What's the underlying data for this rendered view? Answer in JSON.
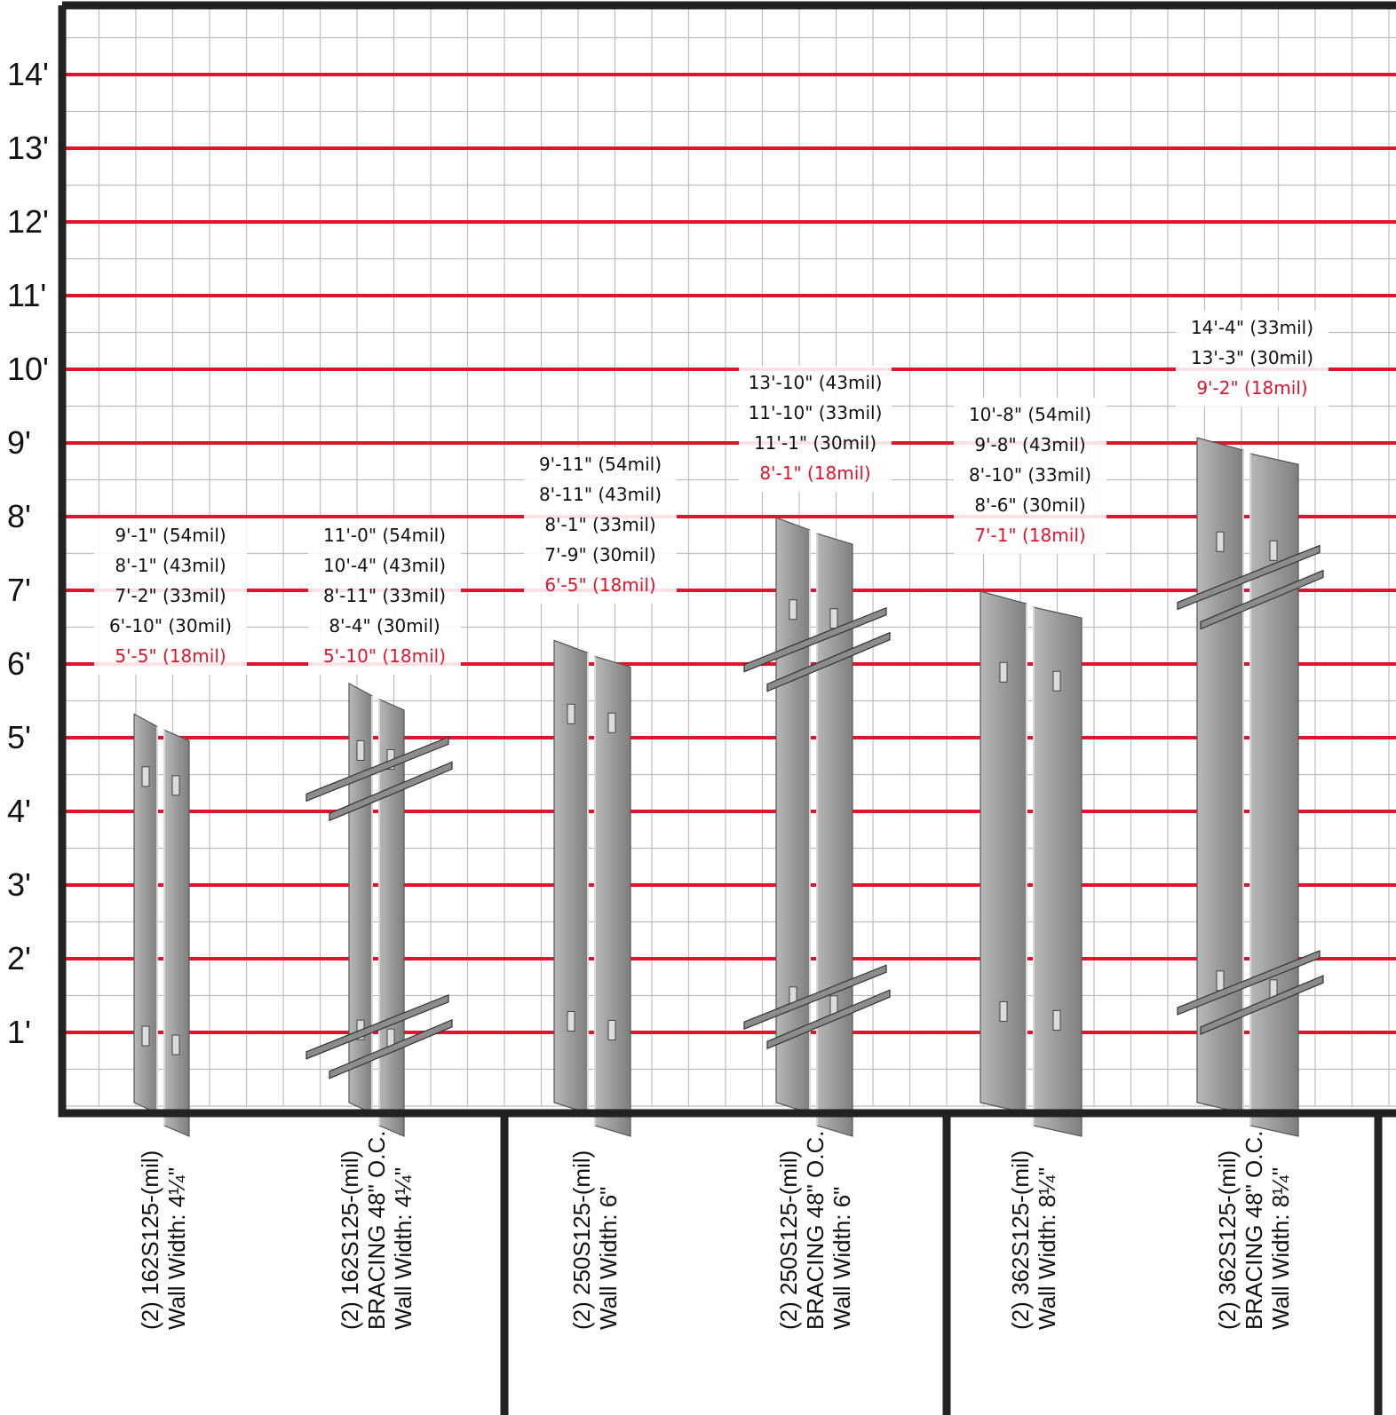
{
  "chart_data": {
    "type": "bar",
    "ylim": [
      0,
      15
    ],
    "y_ticks": [
      "1'",
      "2'",
      "3'",
      "4'",
      "5'",
      "6'",
      "7'",
      "8'",
      "9'",
      "10'",
      "11'",
      "12'",
      "13'",
      "14'"
    ],
    "y_tick_values": [
      1,
      2,
      3,
      4,
      5,
      6,
      7,
      8,
      9,
      10,
      11,
      12,
      13,
      14
    ],
    "grid": true,
    "colors": {
      "major_line": "#e0142c",
      "minor_grid": "#bdbdbd",
      "frame": "#222222",
      "stud": "#9a9a9a",
      "highlight_text": "#e0142c"
    },
    "categories": [
      {
        "label_lines": [
          "(2) 162S125-(mil)",
          "Wall Width: 4¼\""
        ],
        "bracing": false,
        "values": [
          {
            "label": "9'-1\" (54mil)",
            "mil": 54,
            "feet": 9.083
          },
          {
            "label": "8'-1\" (43mil)",
            "mil": 43,
            "feet": 8.083
          },
          {
            "label": "7'-2\" (33mil)",
            "mil": 33,
            "feet": 7.167
          },
          {
            "label": "6'-10\" (30mil)",
            "mil": 30,
            "feet": 6.833
          },
          {
            "label": "5'-5\" (18mil)",
            "mil": 18,
            "feet": 5.417,
            "highlight": true
          }
        ]
      },
      {
        "label_lines": [
          "(2) 162S125-(mil)",
          "BRACING 48\" O.C.",
          "Wall Width: 4¼\""
        ],
        "bracing": true,
        "values": [
          {
            "label": "11'-0\" (54mil)",
            "mil": 54,
            "feet": 11.0
          },
          {
            "label": "10'-4\" (43mil)",
            "mil": 43,
            "feet": 10.333
          },
          {
            "label": "8'-11\" (33mil)",
            "mil": 33,
            "feet": 8.917
          },
          {
            "label": "8'-4\" (30mil)",
            "mil": 30,
            "feet": 8.333
          },
          {
            "label": "5'-10\" (18mil)",
            "mil": 18,
            "feet": 5.833,
            "highlight": true
          }
        ]
      },
      {
        "label_lines": [
          "(2) 250S125-(mil)",
          "Wall Width: 6\""
        ],
        "bracing": false,
        "values": [
          {
            "label": "9'-11\" (54mil)",
            "mil": 54,
            "feet": 9.917
          },
          {
            "label": "8'-11\" (43mil)",
            "mil": 43,
            "feet": 8.917
          },
          {
            "label": "8'-1\" (33mil)",
            "mil": 33,
            "feet": 8.083
          },
          {
            "label": "7'-9\" (30mil)",
            "mil": 30,
            "feet": 7.75
          },
          {
            "label": "6'-5\" (18mil)",
            "mil": 18,
            "feet": 6.417,
            "highlight": true
          }
        ]
      },
      {
        "label_lines": [
          "(2) 250S125-(mil)",
          "BRACING 48\" O.C.",
          "Wall Width: 6\""
        ],
        "bracing": true,
        "values": [
          {
            "label": "13'-10\" (43mil)",
            "mil": 43,
            "feet": 13.833
          },
          {
            "label": "11'-10\" (33mil)",
            "mil": 33,
            "feet": 11.833
          },
          {
            "label": "11'-1\" (30mil)",
            "mil": 30,
            "feet": 11.083
          },
          {
            "label": "8'-1\" (18mil)",
            "mil": 18,
            "feet": 8.083,
            "highlight": true
          }
        ]
      },
      {
        "label_lines": [
          "(2) 362S125-(mil)",
          "Wall Width: 8¼\""
        ],
        "bracing": false,
        "values": [
          {
            "label": "10'-8\" (54mil)",
            "mil": 54,
            "feet": 10.667
          },
          {
            "label": "9'-8\" (43mil)",
            "mil": 43,
            "feet": 9.667
          },
          {
            "label": "8'-10\" (33mil)",
            "mil": 33,
            "feet": 8.833
          },
          {
            "label": "8'-6\" (30mil)",
            "mil": 30,
            "feet": 8.5
          },
          {
            "label": "7'-1\" (18mil)",
            "mil": 18,
            "feet": 7.083,
            "highlight": true
          }
        ]
      },
      {
        "label_lines": [
          "(2) 362S125-(mil)",
          "BRACING 48\" O.C.",
          "Wall Width: 8¼\""
        ],
        "bracing": true,
        "values": [
          {
            "label": "14'-4\" (33mil)",
            "mil": 33,
            "feet": 14.333
          },
          {
            "label": "13'-3\" (30mil)",
            "mil": 30,
            "feet": 13.25
          },
          {
            "label": "9'-2\" (18mil)",
            "mil": 18,
            "feet": 9.167,
            "highlight": true
          }
        ]
      }
    ]
  }
}
